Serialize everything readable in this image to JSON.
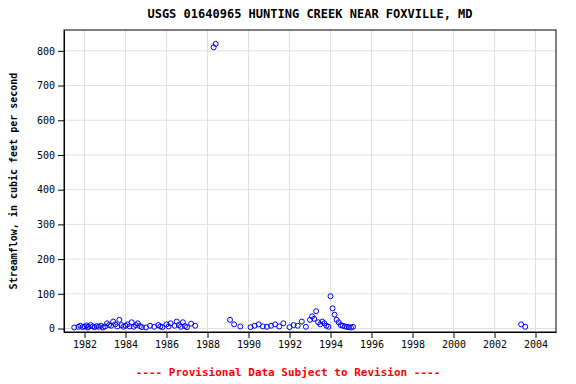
{
  "chart_data": {
    "type": "scatter",
    "title": "USGS 01640965 HUNTING CREEK NEAR FOXVILLE, MD",
    "ylabel": "Streamflow, in cubic feet per second",
    "subtitle": "---- Provisional Data Subject to Revision ----",
    "color": "blue",
    "marker": "open-circle",
    "grid": true,
    "xlim": [
      1981.0,
      2005.0
    ],
    "ylim": [
      -10,
      860
    ],
    "xticks": [
      1982,
      1984,
      1986,
      1988,
      1990,
      1992,
      1994,
      1996,
      1998,
      2000,
      2002,
      2004
    ],
    "yticks": [
      0,
      100,
      200,
      300,
      400,
      500,
      600,
      700,
      800
    ],
    "x": [
      1981.5,
      1981.7,
      1981.8,
      1981.9,
      1982.0,
      1982.1,
      1982.15,
      1982.2,
      1982.3,
      1982.4,
      1982.5,
      1982.6,
      1982.7,
      1982.8,
      1982.9,
      1983.0,
      1983.1,
      1983.2,
      1983.3,
      1983.4,
      1983.5,
      1983.6,
      1983.7,
      1983.8,
      1983.9,
      1984.0,
      1984.1,
      1984.2,
      1984.3,
      1984.4,
      1984.5,
      1984.6,
      1984.7,
      1984.8,
      1985.0,
      1985.2,
      1985.4,
      1985.6,
      1985.7,
      1985.8,
      1986.0,
      1986.1,
      1986.2,
      1986.4,
      1986.5,
      1986.6,
      1986.7,
      1986.8,
      1986.9,
      1987.0,
      1987.2,
      1987.4,
      1988.3,
      1988.4,
      1989.1,
      1989.3,
      1989.6,
      1990.1,
      1990.3,
      1990.5,
      1990.7,
      1990.9,
      1991.1,
      1991.3,
      1991.5,
      1991.7,
      1992.0,
      1992.2,
      1992.4,
      1992.6,
      1992.8,
      1993.0,
      1993.1,
      1993.2,
      1993.3,
      1993.4,
      1993.5,
      1993.6,
      1993.7,
      1993.8,
      1993.9,
      1994.0,
      1994.1,
      1994.2,
      1994.3,
      1994.4,
      1994.5,
      1994.6,
      1994.7,
      1994.8,
      1994.9,
      1995.0,
      1995.1,
      2003.3,
      2003.5
    ],
    "values": [
      3,
      5,
      8,
      4,
      6,
      9,
      3,
      5,
      10,
      6,
      4,
      7,
      5,
      8,
      3,
      6,
      15,
      10,
      8,
      20,
      12,
      6,
      25,
      10,
      5,
      8,
      12,
      6,
      18,
      5,
      10,
      15,
      7,
      4,
      3,
      8,
      5,
      10,
      6,
      4,
      12,
      6,
      15,
      8,
      20,
      10,
      5,
      18,
      7,
      4,
      14,
      8,
      810,
      820,
      25,
      12,
      6,
      4,
      8,
      12,
      6,
      5,
      8,
      12,
      6,
      15,
      4,
      10,
      8,
      20,
      5,
      25,
      35,
      28,
      50,
      18,
      12,
      20,
      15,
      8,
      5,
      93,
      58,
      40,
      25,
      18,
      10,
      8,
      6,
      5,
      4,
      3,
      5,
      12,
      5
    ]
  }
}
